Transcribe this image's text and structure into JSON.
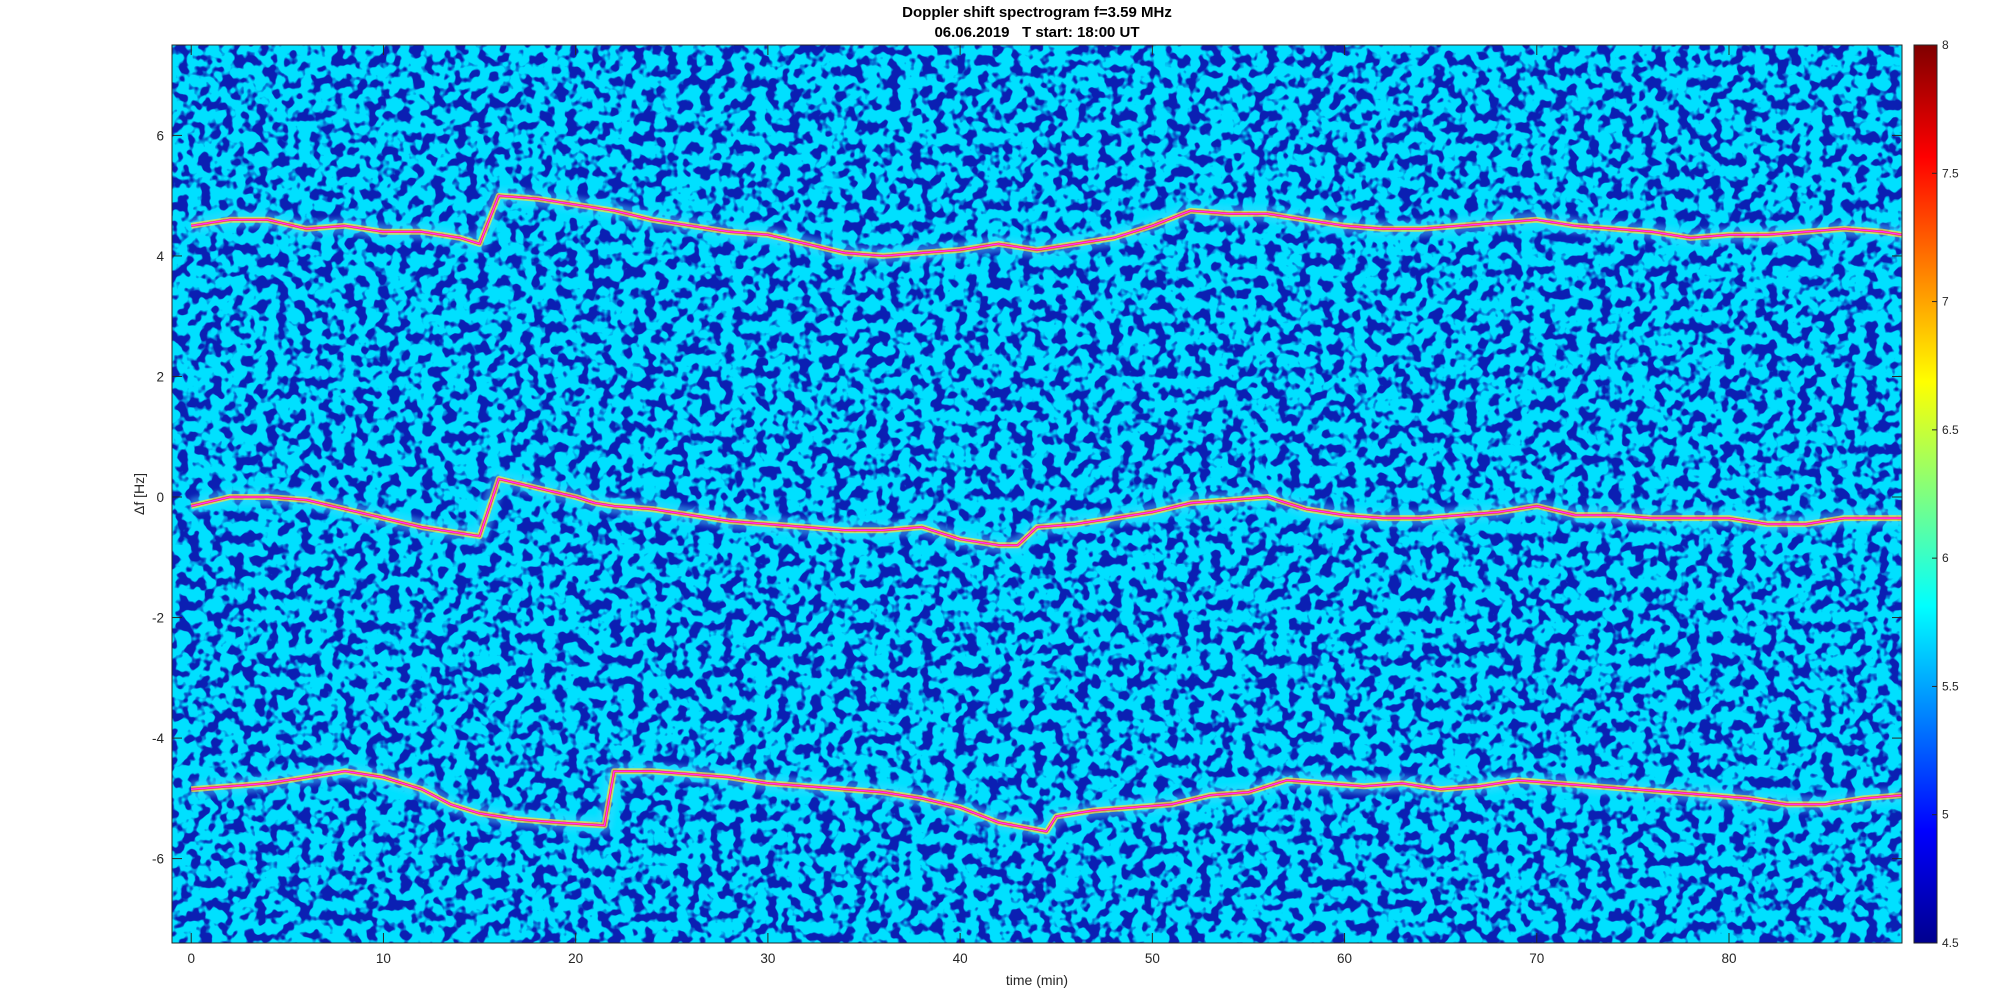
{
  "chart_data": {
    "type": "heatmap",
    "title": "Doppler shift spectrogram f=3.59 MHz",
    "subtitle": "06.06.2019   T start: 18:00 UT",
    "xlabel": "time (min)",
    "ylabel": "Δf [Hz]",
    "xlim": [
      -1,
      89
    ],
    "ylim": [
      -7.4,
      7.5
    ],
    "x_ticks": [
      0,
      10,
      20,
      30,
      40,
      50,
      60,
      70,
      80
    ],
    "y_ticks": [
      -6,
      -4,
      -2,
      0,
      2,
      4,
      6
    ],
    "colorbar": {
      "range": [
        4.5,
        8
      ],
      "ticks": [
        4.5,
        5,
        5.5,
        6,
        6.5,
        7,
        7.5,
        8
      ],
      "colormap": "jet"
    },
    "colors": {
      "background": "#0b1fb3",
      "trace_line": "#ff33ff",
      "jet_low": "#00008f",
      "jet_high": "#800000"
    },
    "series": [
      {
        "x": [
          0,
          2,
          4,
          6,
          8,
          10,
          12,
          14,
          15,
          16,
          18,
          20,
          22,
          24,
          26,
          28,
          30,
          32,
          34,
          36,
          38,
          40,
          42,
          44,
          46,
          48,
          50,
          52,
          54,
          56,
          58,
          60,
          62,
          64,
          66,
          68,
          70,
          72,
          74,
          76,
          78,
          80,
          82,
          84,
          86,
          88,
          89
        ],
        "y": [
          4.5,
          4.6,
          4.6,
          4.45,
          4.5,
          4.4,
          4.4,
          4.3,
          4.2,
          5.0,
          4.95,
          4.85,
          4.75,
          4.6,
          4.5,
          4.4,
          4.35,
          4.2,
          4.05,
          4.0,
          4.05,
          4.1,
          4.2,
          4.1,
          4.2,
          4.3,
          4.5,
          4.75,
          4.7,
          4.7,
          4.6,
          4.5,
          4.45,
          4.45,
          4.5,
          4.55,
          4.6,
          4.5,
          4.45,
          4.4,
          4.3,
          4.35,
          4.35,
          4.4,
          4.45,
          4.4,
          4.35
        ]
      },
      {
        "x": [
          0,
          2,
          4,
          6,
          8,
          10,
          12,
          14,
          15,
          16,
          18,
          20,
          21,
          22,
          24,
          26,
          28,
          30,
          32,
          34,
          36,
          38,
          40,
          42,
          43,
          44,
          46,
          48,
          50,
          52,
          54,
          56,
          58,
          60,
          62,
          64,
          66,
          68,
          70,
          72,
          74,
          76,
          78,
          80,
          82,
          84,
          86,
          88,
          89
        ],
        "y": [
          -0.15,
          0.0,
          0.0,
          -0.05,
          -0.2,
          -0.35,
          -0.5,
          -0.6,
          -0.65,
          0.3,
          0.15,
          0.0,
          -0.1,
          -0.15,
          -0.2,
          -0.3,
          -0.4,
          -0.45,
          -0.5,
          -0.55,
          -0.55,
          -0.5,
          -0.7,
          -0.8,
          -0.8,
          -0.5,
          -0.45,
          -0.35,
          -0.25,
          -0.1,
          -0.05,
          0.0,
          -0.2,
          -0.3,
          -0.35,
          -0.35,
          -0.3,
          -0.25,
          -0.15,
          -0.3,
          -0.3,
          -0.35,
          -0.35,
          -0.35,
          -0.45,
          -0.45,
          -0.35,
          -0.35,
          -0.35
        ]
      },
      {
        "x": [
          0,
          2,
          4,
          6,
          8,
          10,
          12,
          13.5,
          15,
          17,
          19,
          21.5,
          22,
          24,
          26,
          28,
          30,
          32,
          34,
          36,
          38,
          40,
          42,
          44.5,
          45,
          47,
          49,
          51,
          53,
          55,
          57,
          59,
          61,
          63,
          65,
          67,
          69,
          71,
          73,
          75,
          77,
          79,
          81,
          83,
          85,
          87,
          89
        ],
        "y": [
          -4.85,
          -4.8,
          -4.75,
          -4.65,
          -4.55,
          -4.65,
          -4.85,
          -5.1,
          -5.25,
          -5.35,
          -5.4,
          -5.45,
          -4.55,
          -4.55,
          -4.6,
          -4.65,
          -4.75,
          -4.8,
          -4.85,
          -4.9,
          -5.0,
          -5.15,
          -5.4,
          -5.55,
          -5.3,
          -5.2,
          -5.15,
          -5.1,
          -4.95,
          -4.9,
          -4.7,
          -4.75,
          -4.8,
          -4.75,
          -4.85,
          -4.8,
          -4.7,
          -4.75,
          -4.8,
          -4.85,
          -4.9,
          -4.95,
          -5.0,
          -5.1,
          -5.1,
          -5.0,
          -4.95
        ]
      }
    ]
  }
}
